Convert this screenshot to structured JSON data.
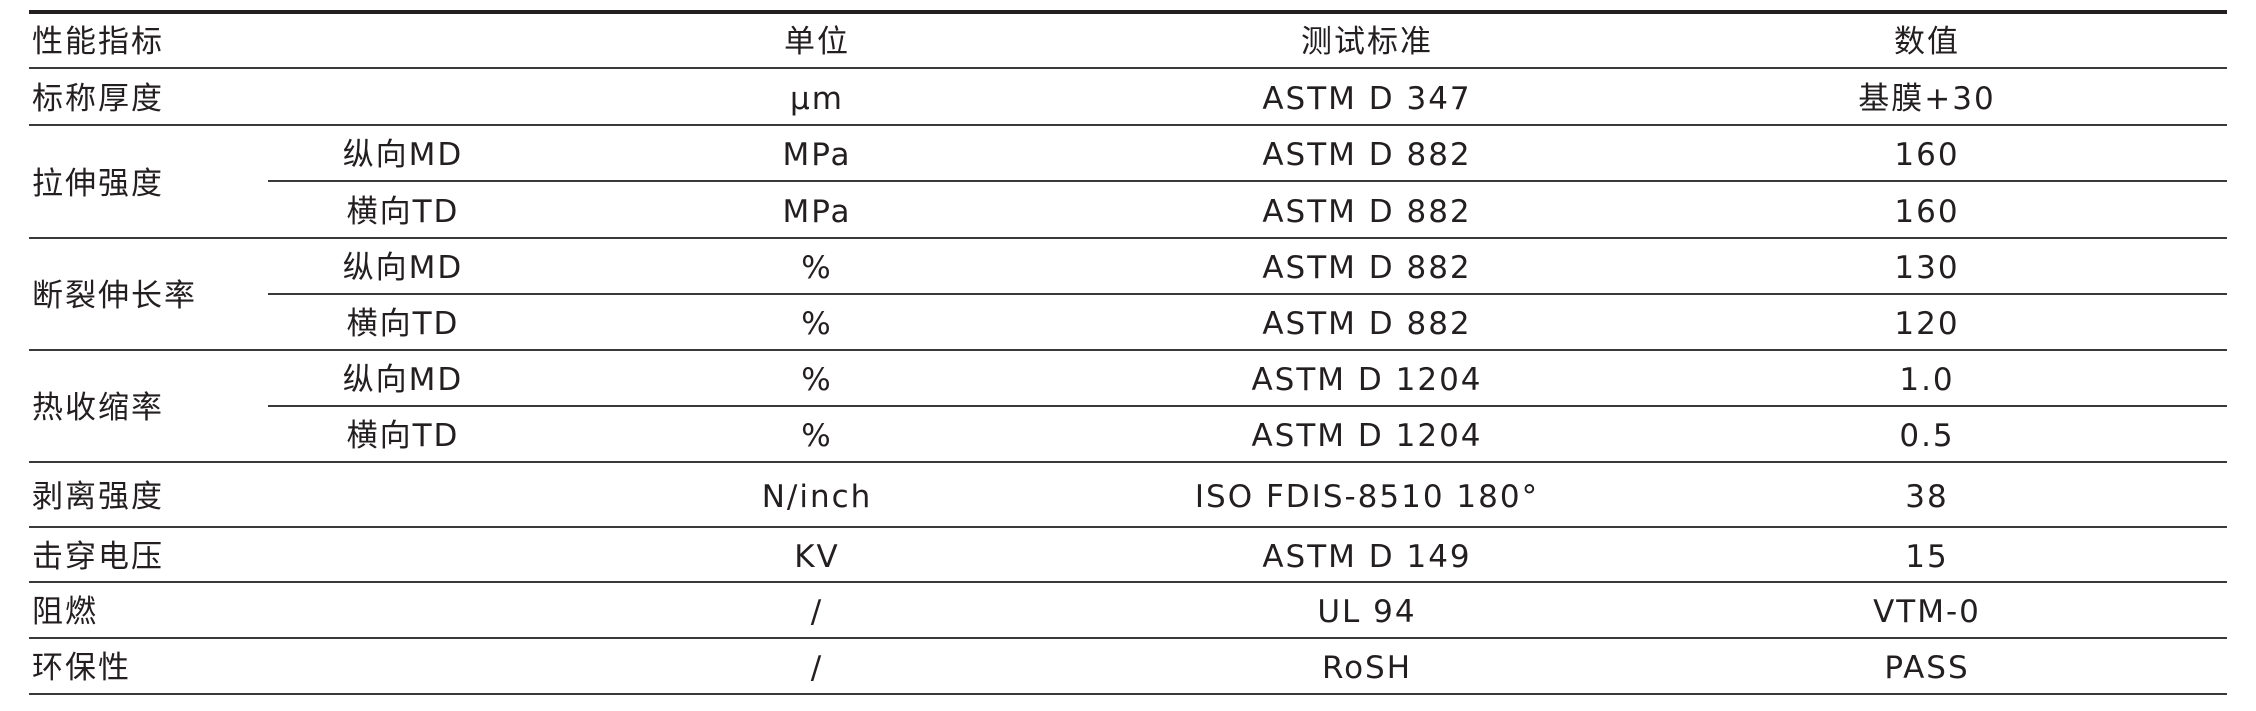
{
  "header": {
    "property": "性能指标",
    "unit": "单位",
    "standard": "测试标准",
    "value": "数值"
  },
  "rows": [
    {
      "property": "标称厚度",
      "sub": "",
      "unit": "μm",
      "standard": "ASTM D 347",
      "value": "基膜+30"
    },
    {
      "property": "拉伸强度",
      "sub": "纵向MD",
      "unit": "MPa",
      "standard": "ASTM D 882",
      "value": "160"
    },
    {
      "property": "",
      "sub": "横向TD",
      "unit": "MPa",
      "standard": "ASTM D 882",
      "value": "160"
    },
    {
      "property": "断裂伸长率",
      "sub": "纵向MD",
      "unit": "%",
      "standard": "ASTM D 882",
      "value": "130"
    },
    {
      "property": "",
      "sub": "横向TD",
      "unit": "%",
      "standard": "ASTM D 882",
      "value": "120"
    },
    {
      "property": "热收缩率",
      "sub": "纵向MD",
      "unit": "%",
      "standard": "ASTM D 1204",
      "value": "1.0"
    },
    {
      "property": "",
      "sub": "横向TD",
      "unit": "%",
      "standard": "ASTM D 1204",
      "value": "0.5"
    },
    {
      "property": "剥离强度",
      "sub": "",
      "unit": "N/inch",
      "standard": "ISO FDIS-8510 180°",
      "value": "38"
    },
    {
      "property": "击穿电压",
      "sub": "",
      "unit": "KV",
      "standard": "ASTM D 149",
      "value": "15"
    },
    {
      "property": "阻燃",
      "sub": "",
      "unit": "/",
      "standard": "UL 94",
      "value": "VTM-0"
    },
    {
      "property": "环保性",
      "sub": "",
      "unit": "/",
      "standard": "RoSH",
      "value": "PASS"
    }
  ]
}
